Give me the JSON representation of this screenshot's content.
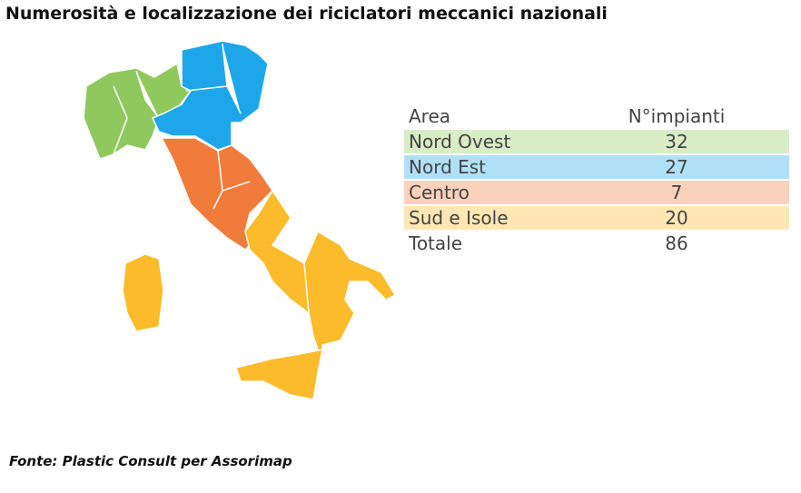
{
  "title": "Numerosità e localizzazione dei riciclatori meccanici nazionali",
  "table": {
    "header": [
      "Area",
      "N°impianti"
    ],
    "rows": [
      {
        "area": "Nord Ovest",
        "count": 32,
        "color": "#8fc95d"
      },
      {
        "area": "Nord Est",
        "count": 27,
        "color": "#1ea6ea"
      },
      {
        "area": "Centro",
        "count": 7,
        "color": "#f07b3a"
      },
      {
        "area": "Sud e Isole",
        "count": 20,
        "color": "#fbbb2a"
      },
      {
        "area": "Totale",
        "count": 86
      }
    ]
  },
  "source": "Fonte: Plastic Consult per Assorimap"
}
